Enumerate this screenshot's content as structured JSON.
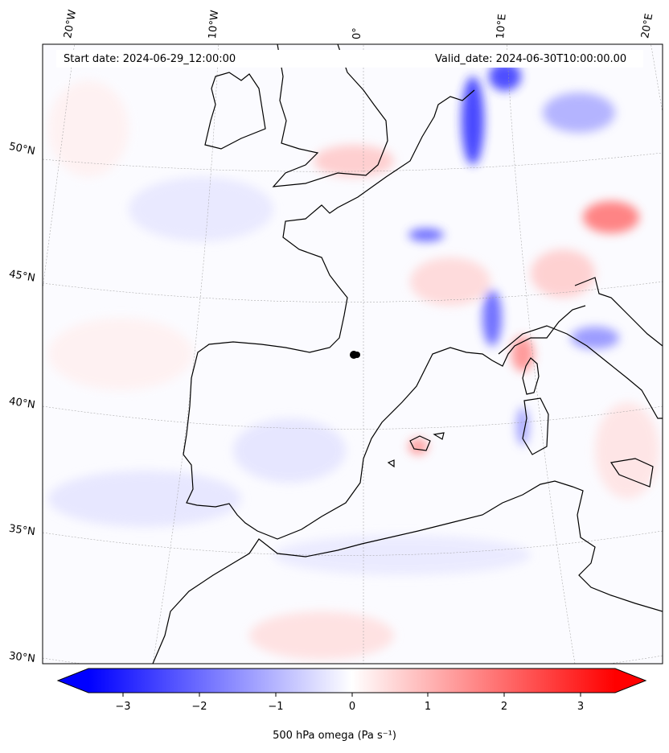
{
  "header": {
    "start_date": "Start date: 2024-06-29_12:00:00",
    "valid_date": "Valid_date: 2024-06-30T10:00:00.00"
  },
  "longitude_labels": [
    "20°W",
    "10°W",
    "0°",
    "10°E",
    "20°E"
  ],
  "latitude_labels": [
    "50°N",
    "45°N",
    "40°N",
    "35°N",
    "30°N"
  ],
  "colorbar": {
    "label": "500 hPa omega (Pa s⁻¹)",
    "ticks": [
      "−3",
      "−2",
      "−1",
      "0",
      "1",
      "2",
      "3"
    ],
    "range": [
      -3.6,
      3.6
    ],
    "colormap": "bwr",
    "colors": {
      "negative": "#0000ff",
      "zero": "#ffffff",
      "positive": "#ff0000"
    },
    "extend": "both"
  },
  "map": {
    "field": "500 hPa omega",
    "coastline_color": "#000000",
    "gridline_style": "dotted"
  }
}
